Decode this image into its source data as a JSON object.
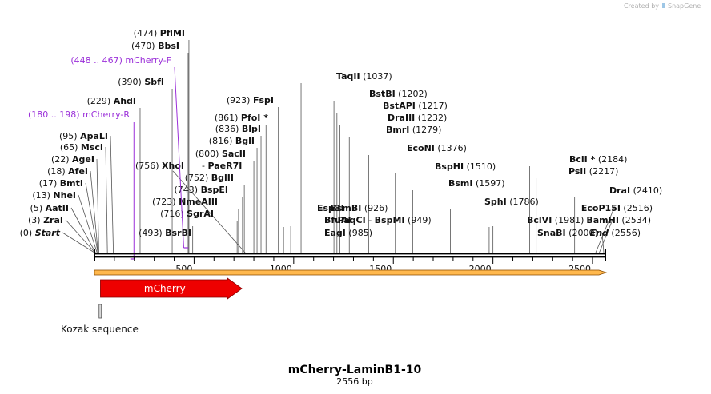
{
  "credit": {
    "text": "Created by",
    "brand": "SnapGene"
  },
  "title": "mCherry-LaminB1-10",
  "subtitle": "2556 bp",
  "sequence_length": 2556,
  "ticks": [
    500,
    1000,
    1500,
    2000,
    2500
  ],
  "colors": {
    "backbone": "#000000",
    "orf_fill": "#ffb84d",
    "orf_stroke": "#8a4b00",
    "feature": "#ee0000",
    "primer": "#9b30d9",
    "kozak": "#9a9a9a"
  },
  "sites": [
    {
      "pos": 0,
      "label": "(0)",
      "name": "Start",
      "type": "end"
    },
    {
      "pos": 3,
      "label": "(3)",
      "name": "ZraI"
    },
    {
      "pos": 5,
      "label": "(5)",
      "name": "AatII"
    },
    {
      "pos": 13,
      "label": "(13)",
      "name": "NheI"
    },
    {
      "pos": 17,
      "label": "(17)",
      "name": "BmtI"
    },
    {
      "pos": 18,
      "label": "(18)",
      "name": "AfeI"
    },
    {
      "pos": 22,
      "label": "(22)",
      "name": "AgeI"
    },
    {
      "pos": 65,
      "label": "(65)",
      "name": "MscI"
    },
    {
      "pos": 95,
      "label": "(95)",
      "name": "ApaLI"
    },
    {
      "pos": 229,
      "label": "(229)",
      "name": "AhdI"
    },
    {
      "pos": 390,
      "label": "(390)",
      "name": "SbfI"
    },
    {
      "pos": 470,
      "label": "(470)",
      "name": "BbsI"
    },
    {
      "pos": 474,
      "label": "(474)",
      "name": "PflMI"
    },
    {
      "pos": 493,
      "label": "(493)",
      "name": "BsrBI"
    },
    {
      "pos": 716,
      "label": "(716)",
      "name": "SgrAI"
    },
    {
      "pos": 723,
      "label": "(723)",
      "name": "NmeAIII"
    },
    {
      "pos": 743,
      "label": "(743)",
      "name": "BspEI"
    },
    {
      "pos": 752,
      "label": "(752)",
      "name": "BglII"
    },
    {
      "pos": 756,
      "label": "(756)",
      "name": "XhoI",
      "extra": "PaeR7I"
    },
    {
      "pos": 800,
      "label": "(800)",
      "name": "SacII"
    },
    {
      "pos": 816,
      "label": "(816)",
      "name": "BglI"
    },
    {
      "pos": 836,
      "label": "(836)",
      "name": "BlpI"
    },
    {
      "pos": 861,
      "label": "(861)",
      "name": "PfoI *"
    },
    {
      "pos": 923,
      "label": "(923)",
      "name": "FspI"
    },
    {
      "pos": 926,
      "label": "(926)",
      "name": "Esp3I",
      "extra": "BsmBI"
    },
    {
      "pos": 949,
      "label": "(949)",
      "name": "BfuAI",
      "extra": "PaqCI",
      "extra2": "BspMI"
    },
    {
      "pos": 985,
      "label": "(985)",
      "name": "EagI"
    },
    {
      "pos": 1037,
      "label": "(1037)",
      "name": "TaqII"
    },
    {
      "pos": 1202,
      "label": "(1202)",
      "name": "BstBI"
    },
    {
      "pos": 1217,
      "label": "(1217)",
      "name": "BstAPI"
    },
    {
      "pos": 1232,
      "label": "(1232)",
      "name": "DraIII"
    },
    {
      "pos": 1279,
      "label": "(1279)",
      "name": "BmrI"
    },
    {
      "pos": 1376,
      "label": "(1376)",
      "name": "EcoNI"
    },
    {
      "pos": 1510,
      "label": "(1510)",
      "name": "BspHI"
    },
    {
      "pos": 1597,
      "label": "(1597)",
      "name": "BsmI"
    },
    {
      "pos": 1786,
      "label": "(1786)",
      "name": "SphI"
    },
    {
      "pos": 1981,
      "label": "(1981)",
      "name": "BclVI"
    },
    {
      "pos": 2000,
      "label": "(2000)",
      "name": "SnaBI"
    },
    {
      "pos": 2184,
      "label": "(2184)",
      "name": "BclI *"
    },
    {
      "pos": 2217,
      "label": "(2217)",
      "name": "PsiI"
    },
    {
      "pos": 2410,
      "label": "(2410)",
      "name": "DraI"
    },
    {
      "pos": 2516,
      "label": "(2516)",
      "name": "EcoP15I"
    },
    {
      "pos": 2534,
      "label": "(2534)",
      "name": "BamHI"
    },
    {
      "pos": 2556,
      "label": "(2556)",
      "name": "End",
      "type": "end"
    }
  ],
  "primers": [
    {
      "range": "(448 .. 467)",
      "name": "mCherry-F",
      "start": 448,
      "end": 467,
      "direction": "forward"
    },
    {
      "range": "(180 .. 198)",
      "name": "mCherry-R",
      "start": 180,
      "end": 198,
      "direction": "reverse"
    }
  ],
  "features": [
    {
      "name": "mCherry",
      "start": 30,
      "end": 740,
      "type": "cds"
    },
    {
      "name": "Kozak sequence",
      "start": 23,
      "end": 32,
      "type": "misc"
    }
  ],
  "orf": {
    "start": 1,
    "end": 2556
  }
}
